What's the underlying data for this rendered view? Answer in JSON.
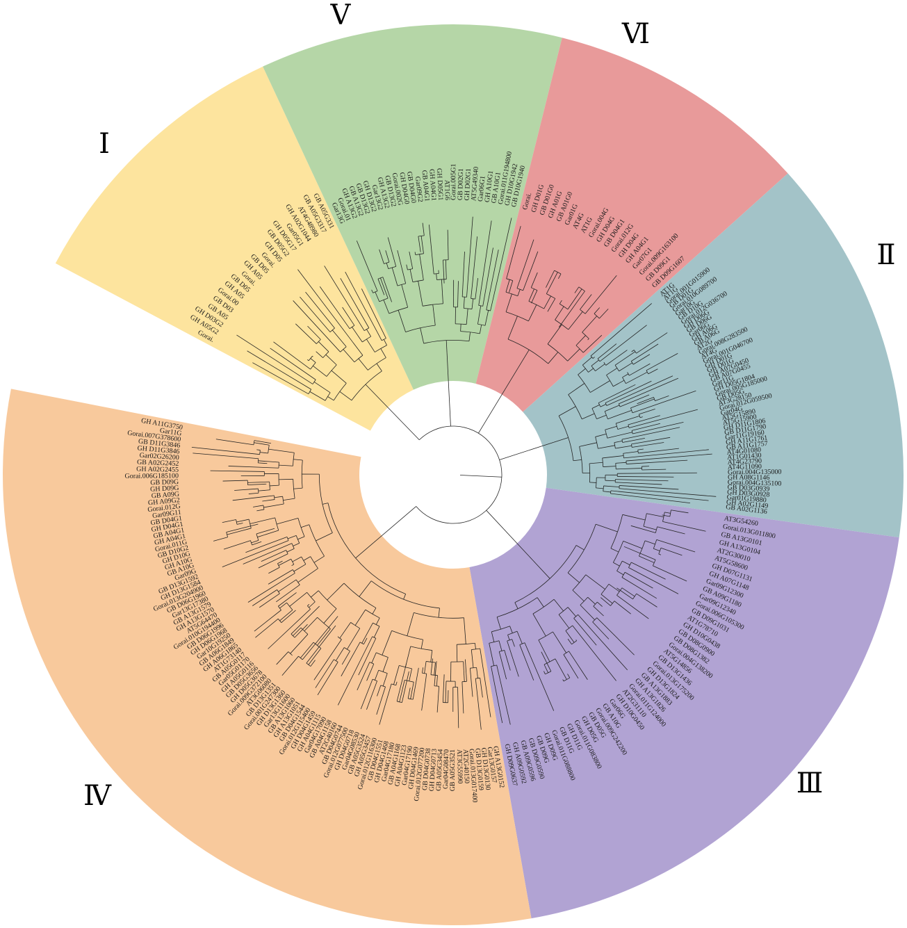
{
  "figure": {
    "type": "circular-phylogenetic-tree",
    "clades": [
      {
        "id": "I",
        "label": "Ⅰ",
        "color": "#fde49e",
        "leaves": [
          "Gorai.",
          "GH A05G2",
          "GH D03G2",
          "GB A05",
          "GB D03",
          "Gorai.00",
          "GH A05",
          "GB D05",
          "Gorai.",
          "GH A05",
          "GB D05",
          "Gorai.",
          "GH D05",
          "GB D05G2",
          "GH D05G17",
          "Gar05G1",
          "GH A02G1044",
          "AT4G48980",
          "GB A05G3317",
          "GB A05G331"
        ]
      },
      {
        "id": "V",
        "label": "Ⅴ",
        "color": "#b5d6a7",
        "leaves": [
          "Gar13G",
          "Gorai.01",
          "GH A13G2",
          "GB A13G2",
          "GB D13G2",
          "GH D13G2",
          "Gar13G2",
          "GH A13G2",
          "GB D13G2",
          "Gorai.002G",
          "GH D04G0",
          "GB D04G0",
          "Gar09G2",
          "GB A04G1",
          "GH A04G1",
          "GH D05G1",
          "AT1G6",
          "Gorai.005G1",
          "GB D02G1",
          "GH D02G1",
          "AT5G49340",
          "Gar06G1",
          "GH A10G1",
          "GB A10G1",
          "Gorai.011G194800",
          "GH D10G1942",
          "GB D10G1940"
        ]
      },
      {
        "id": "VI",
        "label": "Ⅵ",
        "color": "#e89a9a",
        "leaves": [
          "Gorai.",
          "GH D01G",
          "GB D01G0",
          "GH A01G",
          "GB A01G0",
          "Gar01G",
          "AT4G",
          "AT1G",
          "Gorai.004G",
          "GH D04G",
          "GB D04G1",
          "Gorai.012G",
          "GH D04G",
          "GH A04G1",
          "Gar07G1",
          "Gorai.009G163100",
          "GB D09G1",
          "GB D09G1607"
        ]
      },
      {
        "id": "II",
        "label": "Ⅱ",
        "color": "#a3c3c8",
        "leaves": [
          "AT1G",
          "AT1G",
          "Gorai.001G015900",
          "GB D01G",
          "Gorai.010G089700",
          "Gar10G",
          "GB D10G",
          "Gorai.012G036700",
          "GH D06G",
          "GB D06G",
          "Gar06G",
          "GH A06G",
          "GB A06G",
          "AT2G",
          "Gorai.008G283500",
          "AT4G",
          "Gorai.001G046700",
          "GH D01G",
          "GB D01G",
          "GH A07G0450",
          "GB A07G0455",
          "Gar11G",
          "GH D05G1804",
          "Gorai.005G185000",
          "GB D05G",
          "AT3G28150",
          "Gorai.012G059500",
          "Gar04G",
          "AT5G15890",
          "AT5G15900",
          "GH D11G1806",
          "GB D11G1790",
          "Gar11G19160",
          "GH A11G1761",
          "GB A11G1757",
          "AT4G01080",
          "AT1G01430",
          "AT4G23790",
          "AT4G11090",
          "Gorai.004G135000",
          "GH A08G1146",
          "Gorai.004G135100",
          "GB D03G0939",
          "GH D03G0928",
          "Gar01G19880",
          "GH A02G1149",
          "GB A02G1136"
        ]
      },
      {
        "id": "III",
        "label": "Ⅲ",
        "color": "#b1a3d3",
        "leaves": [
          "AT3G54260",
          "Gorai.013G011800",
          "GB A13G0101",
          "GH A13G0104",
          "AT2G30010",
          "AT5G58600",
          "GH D07G1131",
          "GH A07G1148",
          "Gar09G12300",
          "GB A09G1180",
          "Gar09G12340",
          "Gorai.006G105300",
          "GB D09G1031",
          "AT1G78710",
          "GH D10G0438",
          "GB D08G0900",
          "GB D08G1382",
          "Gorai.004G138200",
          "AT5G14856",
          "GB D13G1436",
          "Gorai.013G175200",
          "GH D13G1824",
          "GB A13G1883",
          "GH A13G1826",
          "Gorai.011G124000",
          "AT2G31110",
          "GH D10G0450",
          "Gar06G",
          "GB A10G",
          "Gorai.009G242200",
          "GB D05G",
          "GH D05G",
          "Gorai.011G083800",
          "GH D11G",
          "GB D11G",
          "Gorai.011G088800",
          "GH D09G",
          "GB D09G",
          "GB D09G0590",
          "GB A09G0596",
          "GH A09G0592",
          "GH D09G0637"
        ]
      },
      {
        "id": "IV",
        "label": "Ⅳ",
        "color": "#f8c99c",
        "leaves": [
          "GH A13G0152",
          "Gar13G0157",
          "GH D13G0130",
          "GB D13G0159",
          "Gorai.013G017400",
          "AT2G40150",
          "AT3G55990",
          "GB A05G3521",
          "Gar04G08470",
          "GB A05G3454",
          "GH D04G0713",
          "GB D04G0738",
          "Gorai.012G077200",
          "GH D04G1469",
          "Gar04G17190",
          "GH A04G1123",
          "GB A04G1168",
          "Gar04G17180",
          "GH D04G1468",
          "GB D04G1551",
          "Gorai.012G116300",
          "GH A05G3457",
          "GB A05G3524",
          "Gar04G08530",
          "GH D04G0718",
          "Gorai.012G077500",
          "GB D04G0744",
          "AT2G40160",
          "GB A04G1158",
          "Gar04G17090",
          "GH A04G1115",
          "GH D04G1459",
          "Gorai.012G115400",
          "GB D04G1544",
          "GH A13G1051",
          "GB A13G1060",
          "Gar13G11600",
          "GH D13G1360",
          "Gorai.001G247300",
          "GB D13G1351",
          "AT3G06080",
          "Gorai.009G372100",
          "GH D05G3678",
          "GB D05G3656",
          "GH A05G0116",
          "Gar05G01170",
          "GB A05G0117",
          "AT1G73140",
          "GH A06G1865",
          "GB A06G1849",
          "Gar10G19250",
          "GH D06G1968",
          "GB D06G1996",
          "Gorai.010G194400",
          "AT5G64470",
          "GH A13G1570",
          "GB A13G1579",
          "Gar13G17380",
          "GB D06G1960",
          "Gorai.013G204900",
          "GH D13G1584",
          "GB D13G1592",
          "Gar09G",
          "GB A10G",
          "GH A10G",
          "GH D10G",
          "GB D10G2",
          "Gorai.011G",
          "GH A04G1",
          "GB A04G1",
          "GH D04G1",
          "GB D04G1",
          "Gar09G11",
          "Gorai.012G",
          "GH A09G2",
          "GB A09G",
          "GH D09G",
          "GB D09G",
          "Gorai.006G185100",
          "GH A02G2455",
          "GB A02G2452",
          "Gar02G26200",
          "GH D11G3846",
          "GB D11G3846",
          "Gorai.007G378600",
          "Gar11G",
          "GH A11G3750"
        ]
      }
    ]
  }
}
